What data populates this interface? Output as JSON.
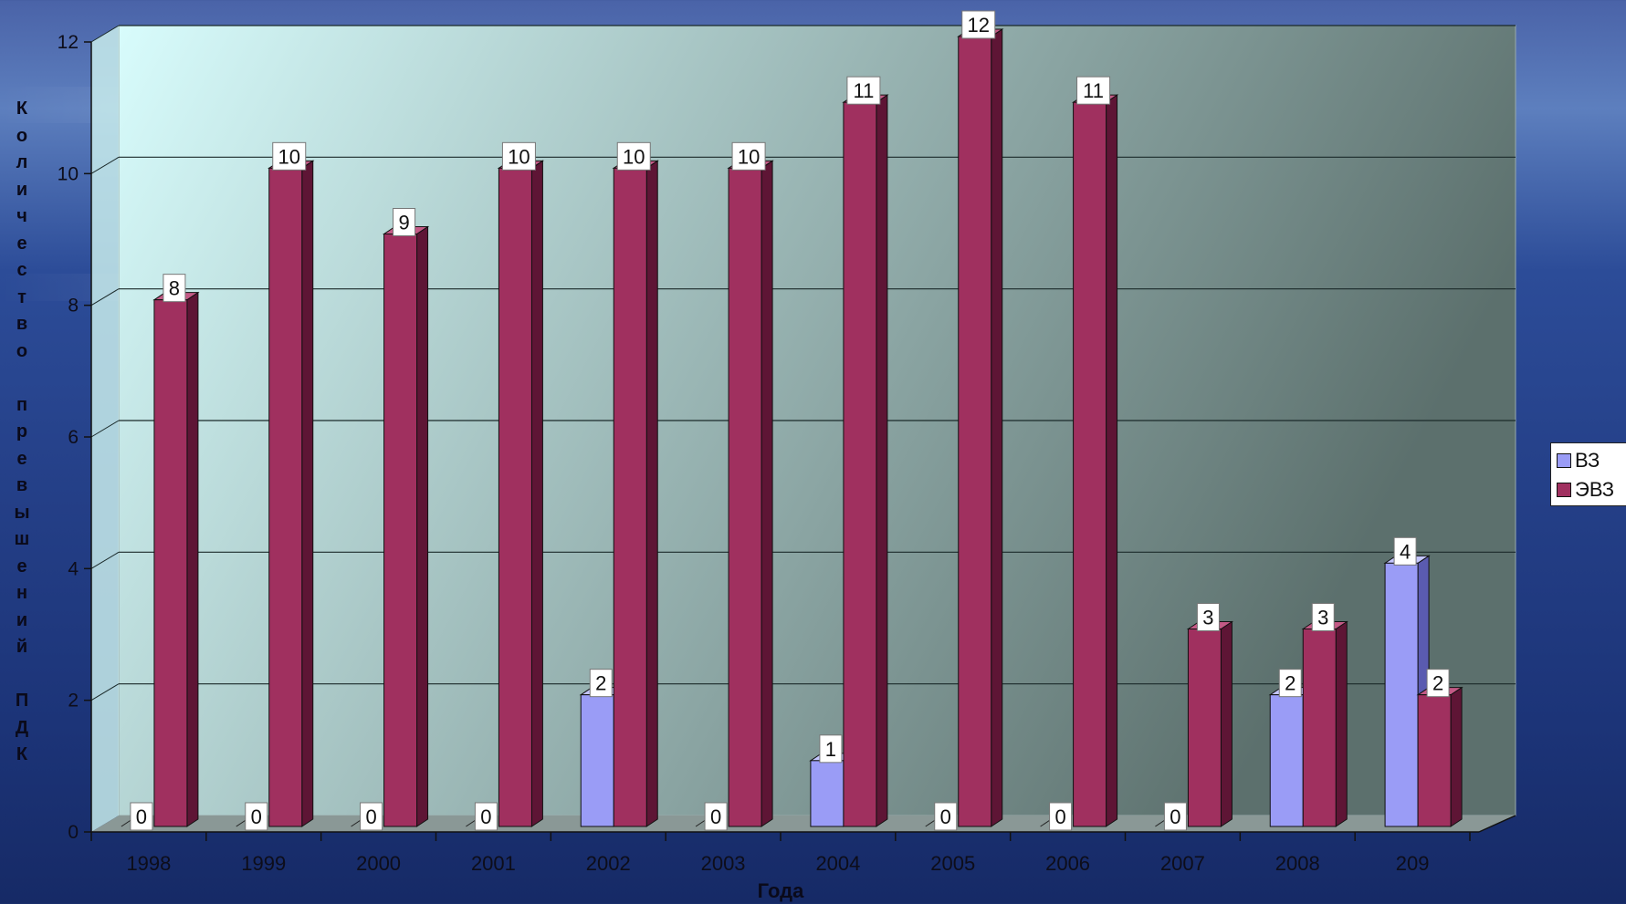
{
  "chart_data": {
    "type": "bar",
    "categories": [
      "1998",
      "1999",
      "2000",
      "2001",
      "2002",
      "2003",
      "2004",
      "2005",
      "2006",
      "2007",
      "2008",
      "209"
    ],
    "series": [
      {
        "name": "ВЗ",
        "values": [
          0,
          0,
          0,
          0,
          2,
          0,
          1,
          0,
          0,
          0,
          2,
          4
        ]
      },
      {
        "name": "ЭВЗ",
        "values": [
          8,
          10,
          9,
          10,
          10,
          10,
          11,
          12,
          11,
          3,
          3,
          2
        ]
      }
    ],
    "title": "",
    "xlabel": "Года",
    "ylabel": "Количество превышений ПДК",
    "ylim": [
      0,
      12
    ],
    "yticks": [
      0,
      2,
      4,
      6,
      8,
      10,
      12
    ],
    "grid": true,
    "legend_position": "right",
    "colors": {
      "series": [
        "#9a9cf6",
        "#a0305f"
      ],
      "series_side": [
        "#5a5bb0",
        "#5e1535"
      ],
      "series_top": [
        "#c4c6ff",
        "#c45a86"
      ],
      "plot_bg_left": "#d8fcfc",
      "plot_bg_right": "#5c706d",
      "floor": "#8a9896",
      "gridline": "#1b2a2a"
    }
  }
}
